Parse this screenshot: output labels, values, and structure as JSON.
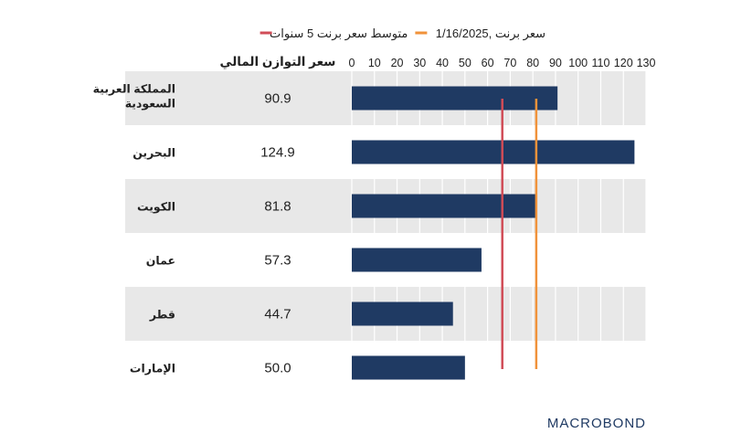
{
  "chart_data": {
    "type": "bar",
    "orientation": "horizontal",
    "value_column_header": "سعر التوازن المالي",
    "categories": [
      [
        "المملكة العربية",
        "السعودية"
      ],
      [
        "البحرين"
      ],
      [
        "الكويت"
      ],
      [
        "عمان"
      ],
      [
        "قطر"
      ],
      [
        "الإمارات"
      ]
    ],
    "values": [
      90.9,
      124.9,
      81.8,
      57.3,
      44.7,
      50.0
    ],
    "value_labels": [
      "90.9",
      "124.9",
      "81.8",
      "57.3",
      "44.7",
      "50.0"
    ],
    "xlim": [
      0,
      130
    ],
    "xticks": [
      0,
      10,
      20,
      30,
      40,
      50,
      60,
      70,
      80,
      90,
      100,
      110,
      120,
      130
    ],
    "grid": true,
    "bar_color": "#1f3a63",
    "band_color": "#e8e8e8",
    "reference_lines": [
      {
        "label": "سعر برنت ,1/16/2025",
        "value": 81.5,
        "color": "#f0923a"
      },
      {
        "label": "متوسط سعر برنت 5 سنوات",
        "value": 66.5,
        "color": "#d04c57"
      }
    ],
    "legend_position": "top"
  },
  "branding": {
    "logo": "MACROBOND",
    "logo_color": "#1f3a63"
  }
}
